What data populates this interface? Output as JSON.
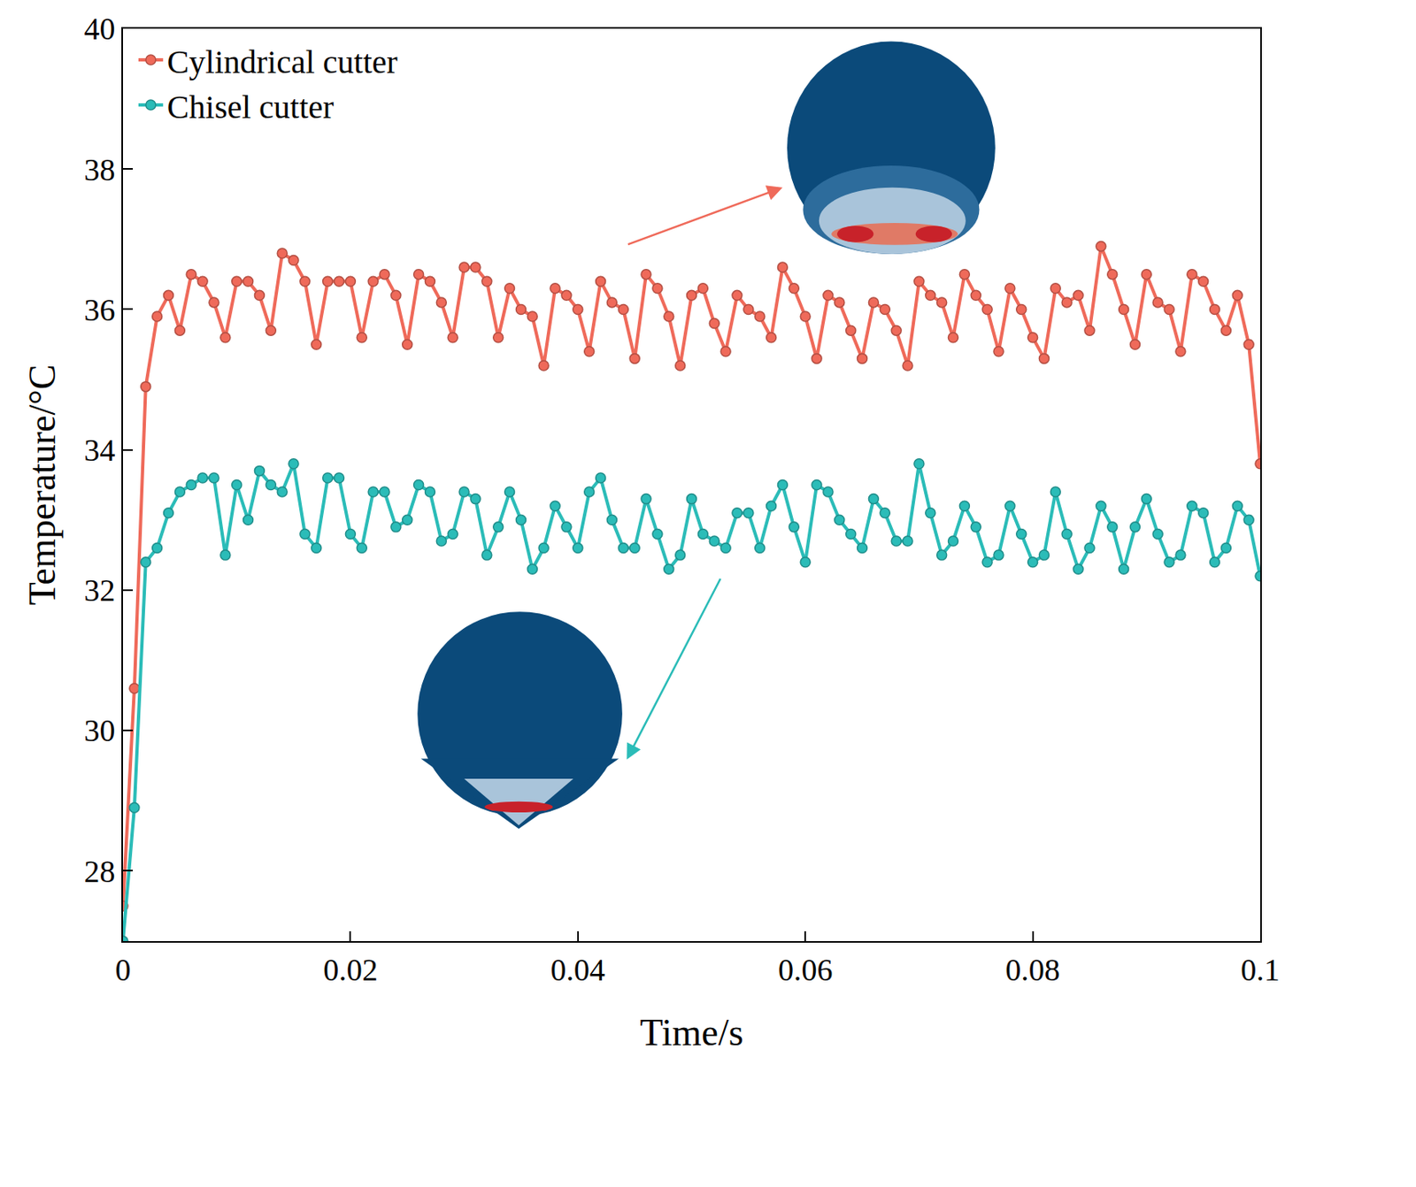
{
  "chart_data": {
    "type": "line",
    "x_label": "Time/s",
    "y_label": "Temperature/°C",
    "x": [
      0,
      0.001,
      0.002,
      0.003,
      0.004,
      0.005,
      0.006,
      0.007,
      0.008,
      0.009,
      0.01,
      0.011,
      0.012,
      0.013,
      0.014,
      0.015,
      0.016,
      0.017,
      0.018,
      0.019,
      0.02,
      0.021,
      0.022,
      0.023,
      0.024,
      0.025,
      0.026,
      0.027,
      0.028,
      0.029,
      0.03,
      0.031,
      0.032,
      0.033,
      0.034,
      0.035,
      0.036,
      0.037,
      0.038,
      0.039,
      0.04,
      0.041,
      0.042,
      0.043,
      0.044,
      0.045,
      0.046,
      0.047,
      0.048,
      0.049,
      0.05,
      0.051,
      0.052,
      0.053,
      0.054,
      0.055,
      0.056,
      0.057,
      0.058,
      0.059,
      0.06,
      0.061,
      0.062,
      0.063,
      0.064,
      0.065,
      0.066,
      0.067,
      0.068,
      0.069,
      0.07,
      0.071,
      0.072,
      0.073,
      0.074,
      0.075,
      0.076,
      0.077,
      0.078,
      0.079,
      0.08,
      0.081,
      0.082,
      0.083,
      0.084,
      0.085,
      0.086,
      0.087,
      0.088,
      0.089,
      0.09,
      0.091,
      0.092,
      0.093,
      0.094,
      0.095,
      0.096,
      0.097,
      0.098,
      0.099,
      0.1
    ],
    "series": [
      {
        "name": "Cylindrical cutter",
        "color": "#ef6a5a",
        "marker": "circle",
        "line_style": "solid",
        "values": [
          27.5,
          30.6,
          34.9,
          35.9,
          36.2,
          35.7,
          36.5,
          36.4,
          36.1,
          35.6,
          36.4,
          36.4,
          36.2,
          35.7,
          36.8,
          36.7,
          36.4,
          35.5,
          36.4,
          36.4,
          36.4,
          35.6,
          36.4,
          36.5,
          36.2,
          35.5,
          36.5,
          36.4,
          36.1,
          35.6,
          36.6,
          36.6,
          36.4,
          35.6,
          36.3,
          36.0,
          35.9,
          35.2,
          36.3,
          36.2,
          36.0,
          35.4,
          36.4,
          36.1,
          36.0,
          35.3,
          36.5,
          36.3,
          35.9,
          35.2,
          36.2,
          36.3,
          35.8,
          35.4,
          36.2,
          36.0,
          35.9,
          35.6,
          36.6,
          36.3,
          35.9,
          35.3,
          36.2,
          36.1,
          35.7,
          35.3,
          36.1,
          36.0,
          35.7,
          35.2,
          36.4,
          36.2,
          36.1,
          35.6,
          36.5,
          36.2,
          36.0,
          35.4,
          36.3,
          36.0,
          35.6,
          35.3,
          36.3,
          36.1,
          36.2,
          35.7,
          36.9,
          36.5,
          36.0,
          35.5,
          36.5,
          36.1,
          36.0,
          35.4,
          36.5,
          36.4,
          36.0,
          35.7,
          36.2,
          35.5,
          33.8
        ]
      },
      {
        "name": "Chisel cutter",
        "color": "#2bbcb8",
        "marker": "circle",
        "line_style": "solid",
        "values": [
          27.0,
          28.9,
          32.4,
          32.6,
          33.1,
          33.4,
          33.5,
          33.6,
          33.6,
          32.5,
          33.5,
          33.0,
          33.7,
          33.5,
          33.4,
          33.8,
          32.8,
          32.6,
          33.6,
          33.6,
          32.8,
          32.6,
          33.4,
          33.4,
          32.9,
          33.0,
          33.5,
          33.4,
          32.7,
          32.8,
          33.4,
          33.3,
          32.5,
          32.9,
          33.4,
          33.0,
          32.3,
          32.6,
          33.2,
          32.9,
          32.6,
          33.4,
          33.6,
          33.0,
          32.6,
          32.6,
          33.3,
          32.8,
          32.3,
          32.5,
          33.3,
          32.8,
          32.7,
          32.6,
          33.1,
          33.1,
          32.6,
          33.2,
          33.5,
          32.9,
          32.4,
          33.5,
          33.4,
          33.0,
          32.8,
          32.6,
          33.3,
          33.1,
          32.7,
          32.7,
          33.8,
          33.1,
          32.5,
          32.7,
          33.2,
          32.9,
          32.4,
          32.5,
          33.2,
          32.8,
          32.4,
          32.5,
          33.4,
          32.8,
          32.3,
          32.6,
          33.2,
          32.9,
          32.3,
          32.9,
          33.3,
          32.8,
          32.4,
          32.5,
          33.2,
          33.1,
          32.4,
          32.6,
          33.2,
          33.0,
          32.2
        ]
      }
    ],
    "xlim": [
      0,
      0.1
    ],
    "xticks": [
      0,
      0.02,
      0.04,
      0.06,
      0.08,
      0.1
    ],
    "ylim": [
      27,
      40
    ],
    "yticks": [
      28,
      30,
      32,
      34,
      36,
      38,
      40
    ],
    "grid": false,
    "legend": "top-left"
  }
}
